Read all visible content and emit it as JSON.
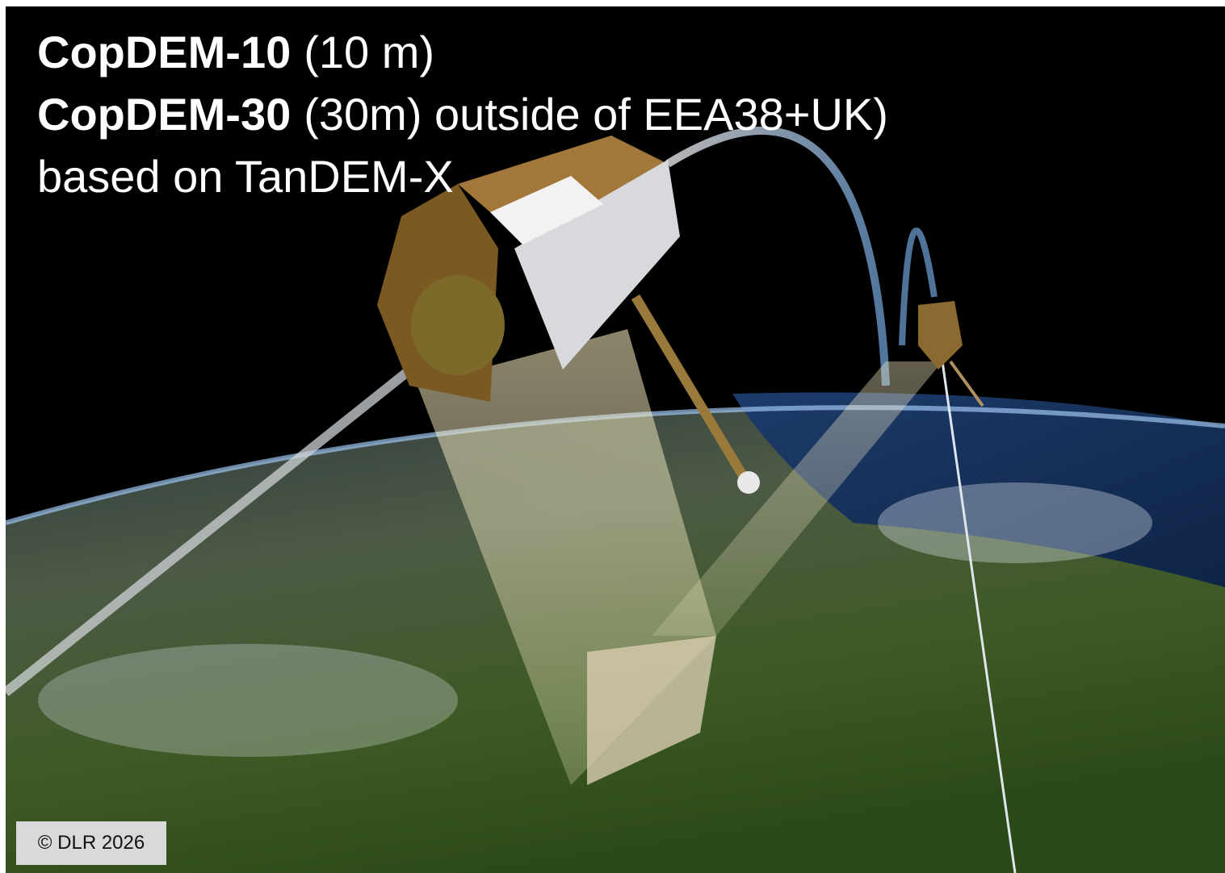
{
  "caption": {
    "lines": [
      {
        "bold": "CopDEM-10",
        "text": "(10 m)"
      },
      {
        "bold": "CopDEM-30",
        "text": "(30m) outside of EEA38+UK)"
      },
      {
        "text": "based on TanDEM-X"
      }
    ]
  },
  "credit": "© DLR 2026"
}
